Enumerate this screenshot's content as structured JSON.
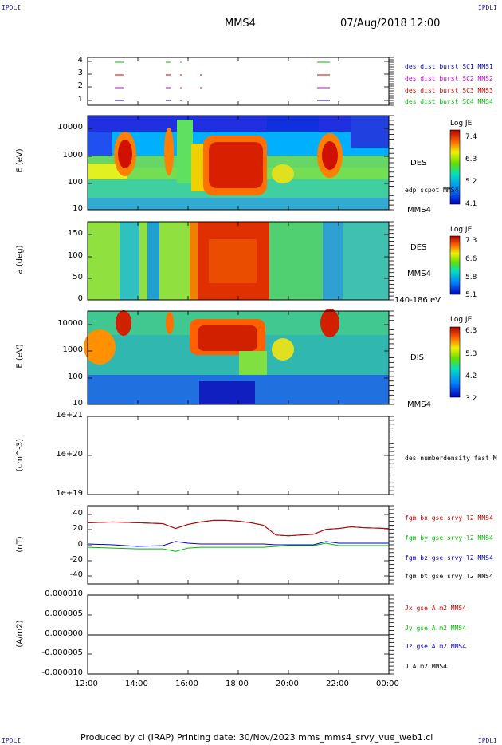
{
  "corners": {
    "tl": "IPDLI",
    "tr": "IPDLI",
    "bl": "IPDLI",
    "br": "IPDLI"
  },
  "header": {
    "spacecraft": "MMS4",
    "datetime": "07/Aug/2018 12:00"
  },
  "footer": "Produced by cl (IRAP)   Printing date: 30/Nov/2023   mms_mms4_srvy_vue_web1.cl",
  "x_ticks": [
    "12:00",
    "14:00",
    "16:00",
    "18:00",
    "20:00",
    "22:00",
    "00:00"
  ],
  "panels": {
    "p1": {
      "legend": [
        {
          "text": "des dist burst SC1 MMS1",
          "color": "#0000cc"
        },
        {
          "text": "des dist burst SC2 MMS2",
          "color": "#cc00cc"
        },
        {
          "text": "des dist burst SC3 MMS3",
          "color": "#cc0000"
        },
        {
          "text": "des dist burst SC4 MMS4",
          "color": "#00bb00"
        }
      ],
      "yticks": [
        "4",
        "3",
        "2",
        "1"
      ]
    },
    "p2": {
      "ylabel": "E (eV)",
      "yticks": [
        "10000",
        "1000",
        "100",
        "10"
      ],
      "label": "DES",
      "sublabel": "edp scpot MMS4",
      "bottom_label": "MMS4",
      "cbar": {
        "title": "Log JE",
        "ticks": [
          "7.4",
          "6.3",
          "5.2",
          "4.1"
        ]
      }
    },
    "p3": {
      "ylabel": "a (deg)",
      "yticks": [
        "150",
        "100",
        "50",
        "0"
      ],
      "label": "DES",
      "sublabel": "MMS4",
      "bottom_label": "140-186 eV",
      "cbar": {
        "title": "Log JE",
        "ticks": [
          "7.3",
          "6.6",
          "5.8",
          "5.1"
        ]
      }
    },
    "p4": {
      "ylabel": "E (eV)",
      "yticks": [
        "10000",
        "1000",
        "100",
        "10"
      ],
      "label": "DIS",
      "bottom_label": "MMS4",
      "cbar": {
        "title": "Log JE",
        "ticks": [
          "6.3",
          "5.3",
          "4.2",
          "3.2"
        ]
      }
    },
    "p5": {
      "ylabel": "(cm^-3)",
      "yticks": [
        "1e+21",
        "1e+20",
        "1e+19"
      ],
      "legend": "des numberdensity fast M"
    },
    "p6": {
      "ylabel": "(nT)",
      "yticks": [
        "40",
        "20",
        "0",
        "-20",
        "-40"
      ],
      "legend": [
        {
          "text": "fgm bx gse srvy l2 MMS4",
          "color": "#cc0000"
        },
        {
          "text": "fgm by gse srvy l2 MMS4",
          "color": "#00bb00"
        },
        {
          "text": "fgm bz gse srvy l2 MMS4",
          "color": "#0000cc"
        },
        {
          "text": "fgm bt gse srvy l2 MMS4",
          "color": "#000000"
        }
      ]
    },
    "p7": {
      "ylabel": "(A/m2)",
      "yticks": [
        "0.000010",
        "0.000005",
        "0.000000",
        "-0.000005",
        "-0.000010"
      ],
      "legend": [
        {
          "text": "Jx gse A m2 MMS4",
          "color": "#cc0000"
        },
        {
          "text": "Jy gse A m2 MMS4",
          "color": "#00bb00"
        },
        {
          "text": "Jz gse A m2 MMS4",
          "color": "#0000cc"
        },
        {
          "text": "J A m2 MMS4",
          "color": "#000000"
        }
      ]
    }
  },
  "chart_data": [
    {
      "type": "line",
      "title": "",
      "xlabel": "",
      "ylabel": "(nT)",
      "ylim": [
        -48,
        48
      ],
      "x": [
        12,
        13,
        14,
        15,
        15.5,
        16,
        16.5,
        17,
        17.5,
        18,
        18.5,
        19,
        19.5,
        20,
        20.5,
        21,
        21.5,
        22,
        22.5,
        23,
        24
      ],
      "series": [
        {
          "name": "fgm bt gse srvy l2 MMS4",
          "values": [
            27,
            28,
            27,
            26,
            20,
            25,
            28,
            30,
            30,
            29,
            27,
            24,
            12,
            11,
            12,
            13,
            19,
            20,
            22,
            21,
            20
          ]
        },
        {
          "name": "fgm bx gse srvy l2 MMS4",
          "values": [
            27,
            28,
            27,
            26,
            20,
            25,
            28,
            30,
            30,
            29,
            27,
            24,
            12,
            11,
            12,
            13,
            19,
            20,
            22,
            21,
            20
          ]
        },
        {
          "name": "fgm by gse srvy l2 MMS4",
          "values": [
            -3,
            -4,
            -5,
            -5,
            -8,
            -4,
            -3,
            -3,
            -3,
            -3,
            -3,
            -3,
            -2,
            -1,
            -1,
            -1,
            2,
            -1,
            -1,
            -1,
            -1
          ]
        },
        {
          "name": "fgm bz gse srvy l2 MMS4",
          "values": [
            1,
            0,
            -2,
            -1,
            4,
            2,
            1,
            1,
            1,
            1,
            1,
            1,
            0,
            0,
            0,
            0,
            4,
            2,
            2,
            2,
            2
          ]
        }
      ]
    },
    {
      "type": "line",
      "ylabel": "(A/m2)",
      "ylim": [
        -1e-05,
        1e-05
      ],
      "x": [
        12,
        24
      ],
      "series": [
        {
          "name": "J A m2 MMS4",
          "values": [
            0,
            0
          ]
        }
      ]
    }
  ]
}
